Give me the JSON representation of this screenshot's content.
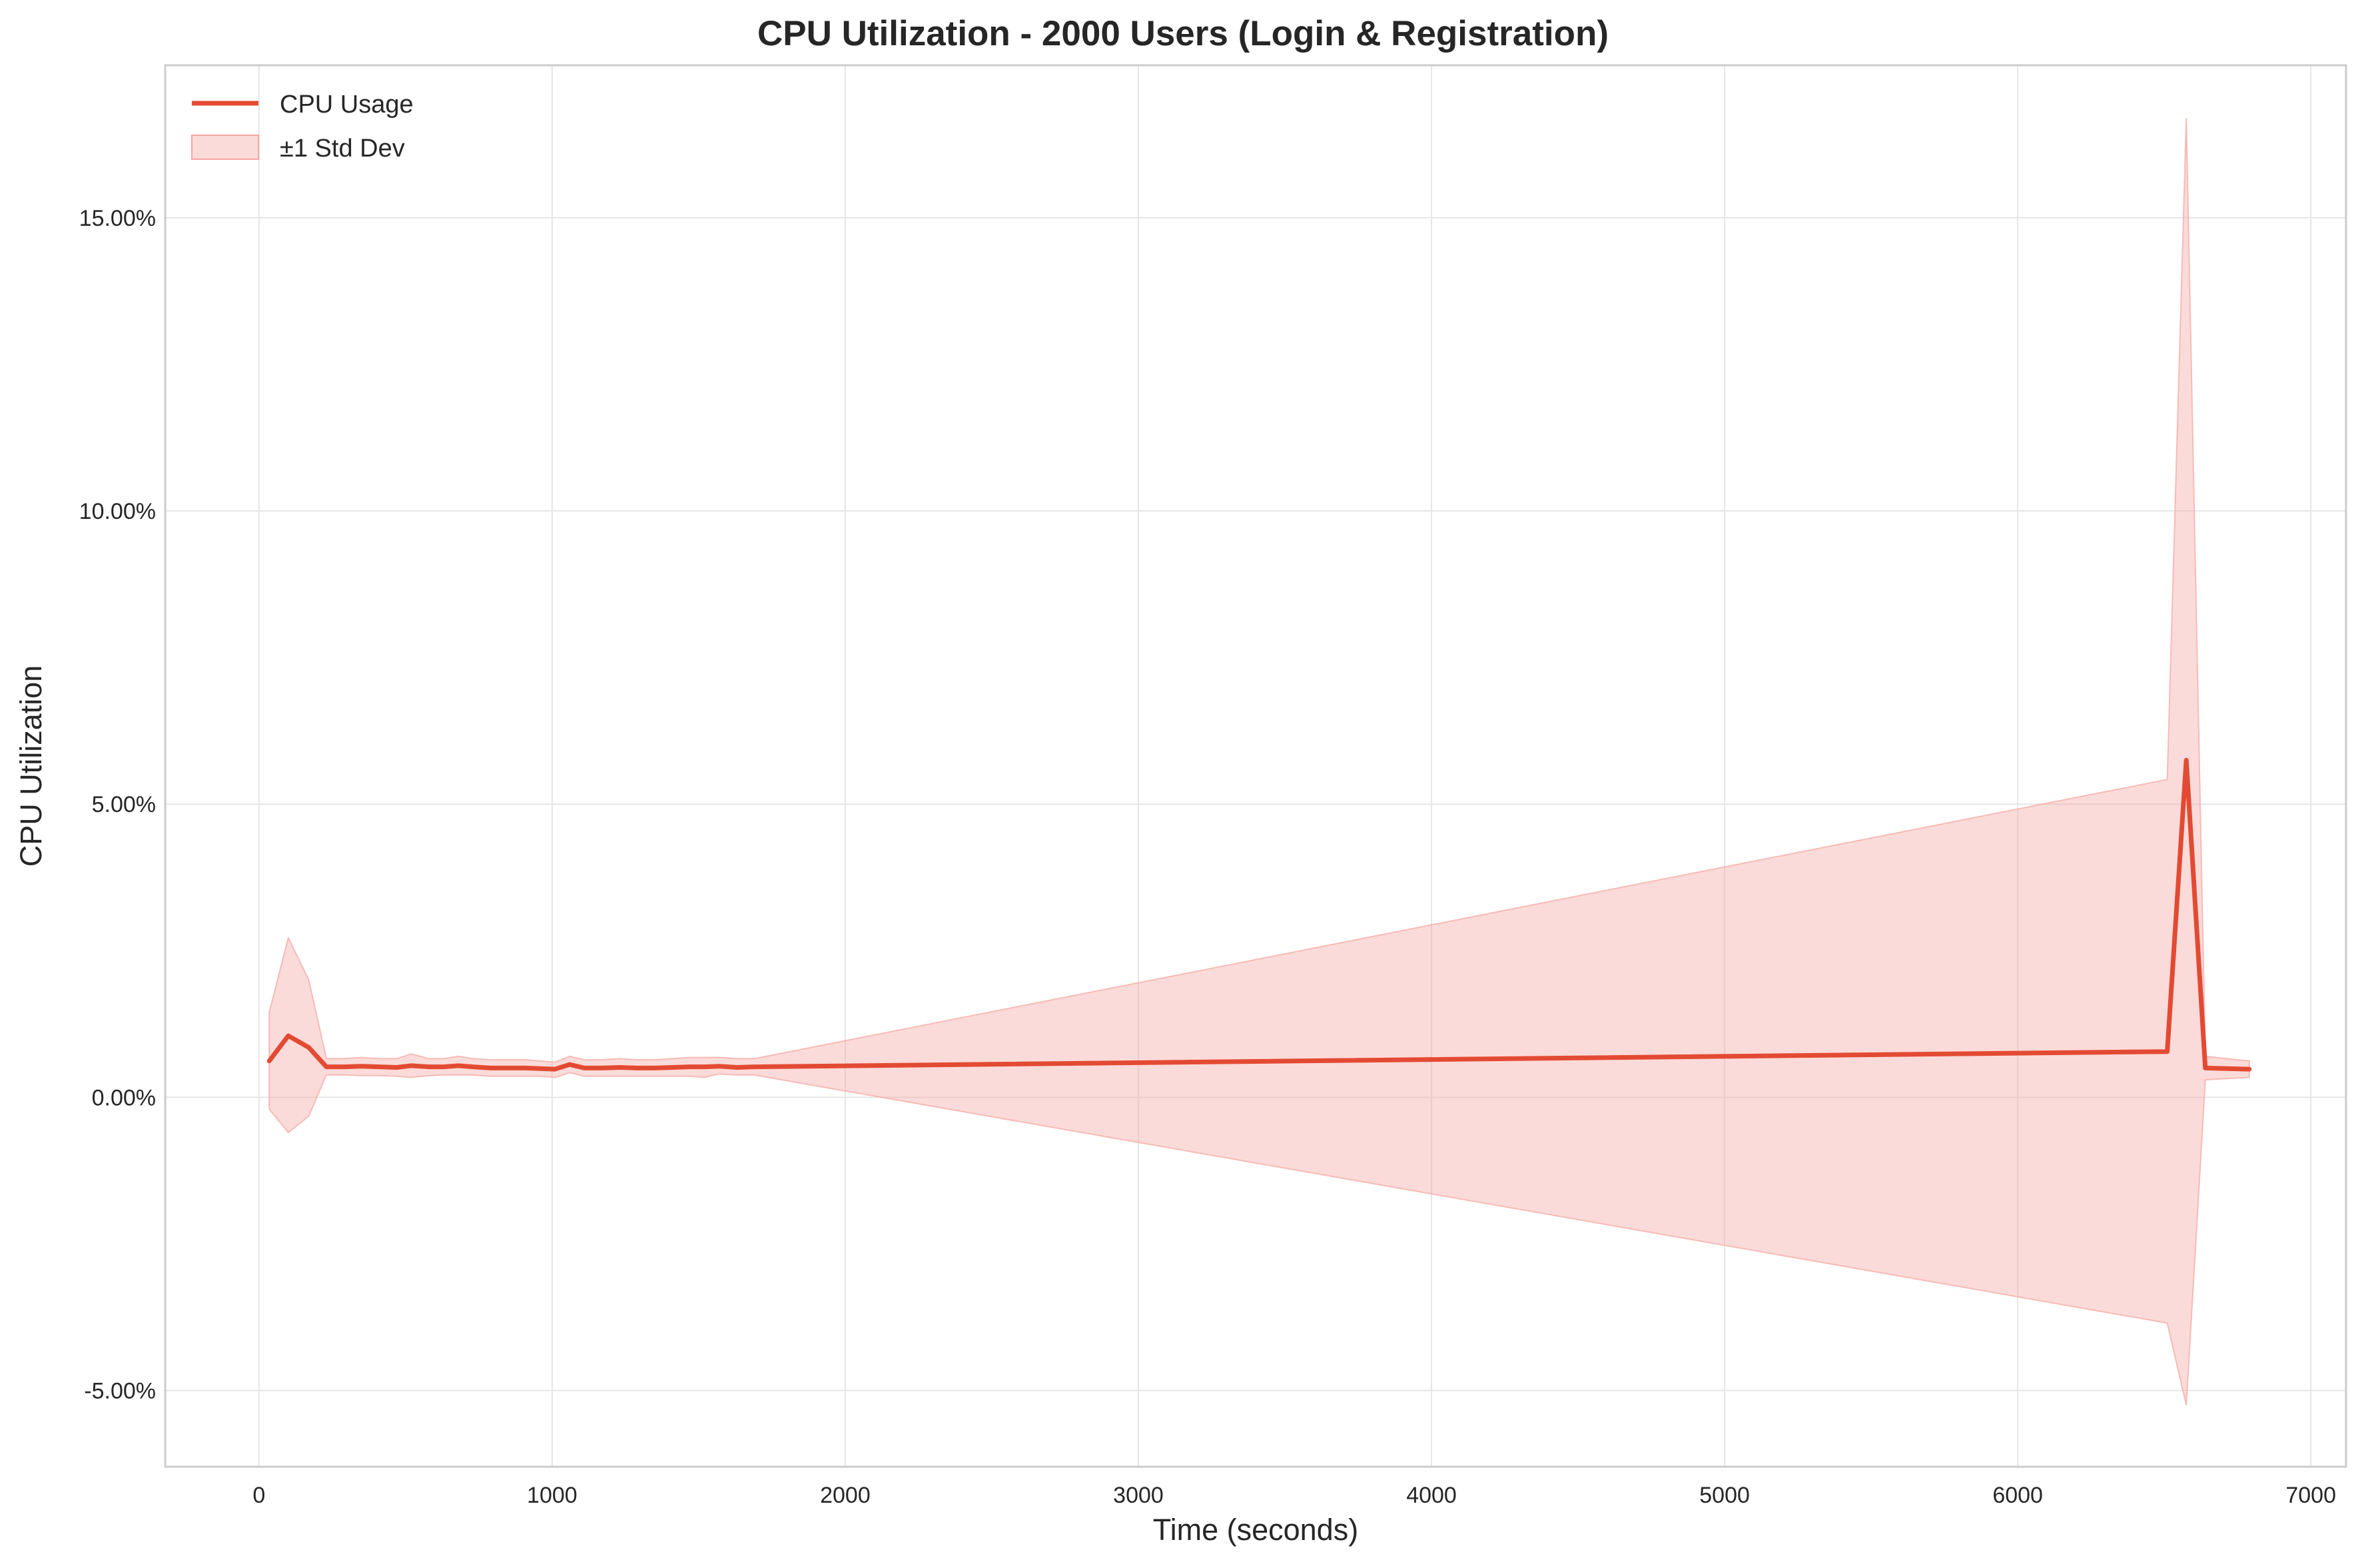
{
  "chart_data": {
    "type": "line",
    "title": "CPU Utilization - 2000 Users (Login & Registration)",
    "xlabel": "Time (seconds)",
    "ylabel": "CPU Utilization",
    "xlim": [
      -320,
      7120
    ],
    "ylim": [
      -6.3,
      17.6
    ],
    "xticks": [
      0,
      1000,
      2000,
      3000,
      4000,
      5000,
      6000,
      7000
    ],
    "xtick_labels": [
      "0",
      "1000",
      "2000",
      "3000",
      "4000",
      "5000",
      "6000",
      "7000"
    ],
    "yticks": [
      -5,
      0,
      5,
      10,
      15
    ],
    "ytick_labels": [
      "-5.00%",
      "0.00%",
      "5.00%",
      "10.00%",
      "15.00%"
    ],
    "grid": true,
    "legend_position": "top-left",
    "colors": {
      "line": "#e34a33",
      "band": "#f4a6a0"
    },
    "series": [
      {
        "name": "CPU Usage",
        "x": [
          35,
          100,
          170,
          230,
          290,
          350,
          410,
          470,
          520,
          580,
          630,
          680,
          730,
          790,
          850,
          910,
          960,
          1010,
          1060,
          1110,
          1170,
          1230,
          1290,
          1350,
          1410,
          1470,
          1520,
          1570,
          1630,
          1690,
          6510,
          6575,
          6640,
          6790
        ],
        "y": [
          0.62,
          1.05,
          0.85,
          0.52,
          0.52,
          0.53,
          0.52,
          0.51,
          0.54,
          0.52,
          0.52,
          0.54,
          0.52,
          0.5,
          0.5,
          0.5,
          0.49,
          0.48,
          0.56,
          0.5,
          0.5,
          0.51,
          0.5,
          0.5,
          0.51,
          0.52,
          0.52,
          0.53,
          0.51,
          0.52,
          0.78,
          5.75,
          0.5,
          0.48
        ]
      },
      {
        "name": "±1 Std Dev",
        "x": [
          35,
          100,
          170,
          230,
          290,
          350,
          410,
          470,
          520,
          580,
          630,
          680,
          730,
          790,
          850,
          910,
          960,
          1010,
          1060,
          1110,
          1170,
          1230,
          1290,
          1350,
          1410,
          1470,
          1520,
          1570,
          1630,
          1690,
          6510,
          6575,
          6640,
          6790
        ],
        "upper": [
          1.45,
          2.72,
          2.0,
          0.66,
          0.66,
          0.68,
          0.66,
          0.66,
          0.74,
          0.66,
          0.66,
          0.7,
          0.66,
          0.64,
          0.64,
          0.64,
          0.62,
          0.6,
          0.7,
          0.64,
          0.64,
          0.66,
          0.64,
          0.64,
          0.66,
          0.68,
          0.68,
          0.68,
          0.66,
          0.66,
          5.42,
          16.7,
          0.7,
          0.62
        ],
        "lower": [
          -0.2,
          -0.6,
          -0.32,
          0.38,
          0.38,
          0.37,
          0.37,
          0.36,
          0.34,
          0.37,
          0.38,
          0.38,
          0.38,
          0.36,
          0.36,
          0.36,
          0.36,
          0.34,
          0.42,
          0.36,
          0.36,
          0.36,
          0.36,
          0.36,
          0.36,
          0.36,
          0.34,
          0.4,
          0.38,
          0.38,
          -3.85,
          -5.25,
          0.3,
          0.34
        ]
      }
    ]
  }
}
